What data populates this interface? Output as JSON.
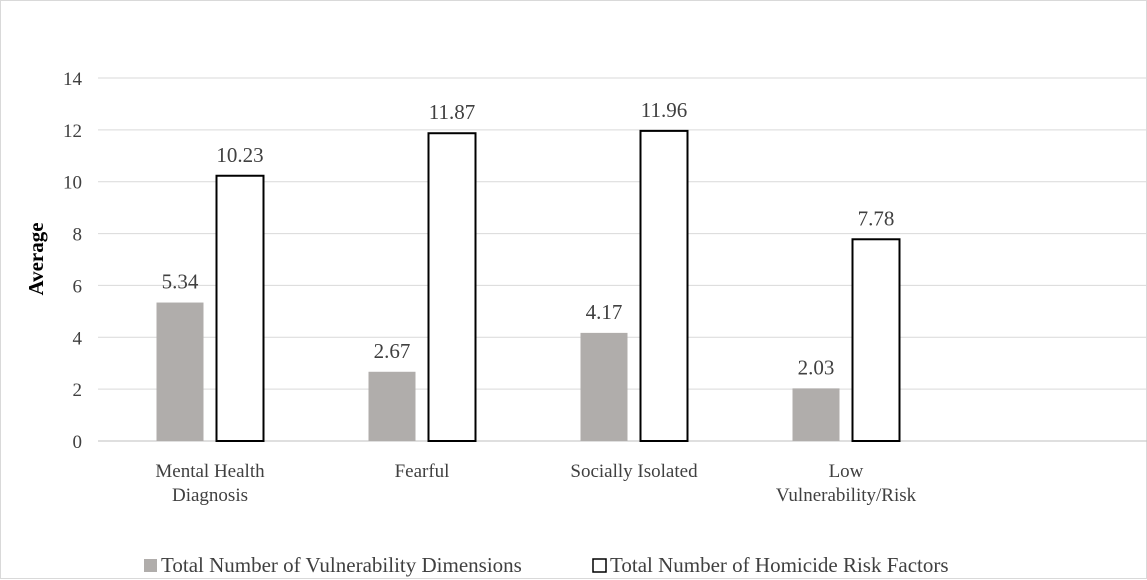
{
  "chart_data": {
    "type": "bar",
    "ylabel": "Average",
    "ylim": [
      0,
      14
    ],
    "yticks": [
      0,
      2,
      4,
      6,
      8,
      10,
      12,
      14
    ],
    "grid": true,
    "legend_position": "bottom",
    "categories": [
      [
        "Mental Health",
        "Diagnosis"
      ],
      [
        "Fearful"
      ],
      [
        "Socially Isolated"
      ],
      [
        "Low",
        "Vulnerability/Risk"
      ]
    ],
    "series": [
      {
        "name": "Total Number of Vulnerability Dimensions",
        "values": [
          5.34,
          2.67,
          4.17,
          2.03
        ],
        "labels": [
          "5.34",
          "2.67",
          "4.17",
          "2.03"
        ],
        "color": "#b0adab"
      },
      {
        "name": "Total Number of Homicide Risk Factors",
        "values": [
          10.23,
          11.87,
          11.96,
          7.78
        ],
        "labels": [
          "10.23",
          "11.87",
          "11.96",
          "7.78"
        ],
        "color": "#ffffff",
        "stroke": "#000000"
      }
    ]
  }
}
